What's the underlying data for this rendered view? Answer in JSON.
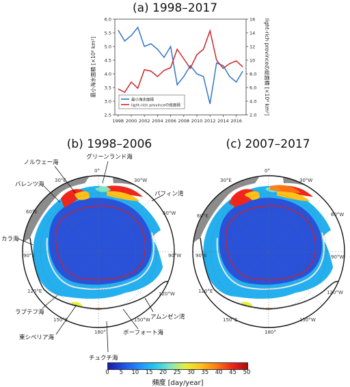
{
  "panel_a": {
    "title": "(a) 1998–2017",
    "ylabel_left": "最小海氷面積 [×10⁶ km²]",
    "ylabel_right": "light-rich provinceの総面積 [×10⁶ km²]",
    "legend_ice": "最小海氷面積",
    "legend_light": "light-rich provinceの総面積"
  },
  "panel_b": {
    "title": "(b) 1998–2006"
  },
  "panel_c": {
    "title": "(c) 2007–2017"
  },
  "map_labels": {
    "norway_sea": "ノルウェー海",
    "greenland_sea": "グリーンランド海",
    "barents_sea": "バレンツ海",
    "baffin_bay": "バフィン湾",
    "kara_sea": "カラ海",
    "laptev_sea": "ラプテフ海",
    "east_siberian_sea": "東シベリア海",
    "chukchi_sea": "チュクチ海",
    "beaufort_sea": "ボーフォート海",
    "amundsen_gulf": "アムンゼン湾"
  },
  "graticule": {
    "lon_0": "0°",
    "lon_30e": "30°E",
    "lon_60e": "60°E",
    "lon_90e": "90°E",
    "lon_120e": "120°E",
    "lon_150e": "150°E",
    "lon_180": "180°",
    "lon_150w": "150°W",
    "lon_120w": "120°W",
    "lon_90w": "90°W",
    "lon_60w": "60°W",
    "lon_30w": "30°W"
  },
  "colorbar": {
    "label": "頻度 [day/year]",
    "ticks": [
      "0",
      "5",
      "10",
      "15",
      "20",
      "25",
      "30",
      "35",
      "40",
      "45",
      "50"
    ],
    "stops": [
      "#1a1aa6",
      "#1f4fe6",
      "#1e90ff",
      "#22c8f0",
      "#7fe6c0",
      "#e6ef3c",
      "#ffc21a",
      "#ff7a12",
      "#f0261a",
      "#b00a0a"
    ]
  },
  "colors": {
    "ice_series": "#2f74c7",
    "light_series": "#c8252a",
    "land": "#8c8c8c",
    "ocean_low": "#2952d9"
  },
  "chart_data": {
    "type": "line",
    "x": [
      1998,
      1999,
      2000,
      2001,
      2002,
      2003,
      2004,
      2005,
      2006,
      2007,
      2008,
      2009,
      2010,
      2011,
      2012,
      2013,
      2014,
      2015,
      2016,
      2017
    ],
    "x_ticks": [
      "1998",
      "2000",
      "2002",
      "2004",
      "2006",
      "2008",
      "2010",
      "2012",
      "2014",
      "2016"
    ],
    "series": [
      {
        "name": "最小海氷面積",
        "axis": "left",
        "values": [
          5.6,
          5.2,
          5.4,
          5.7,
          5.0,
          5.1,
          4.9,
          4.6,
          5.0,
          3.6,
          3.9,
          4.3,
          4.0,
          3.9,
          2.9,
          4.4,
          4.3,
          3.9,
          3.7,
          4.1
        ]
      },
      {
        "name": "light-rich provinceの総面積",
        "axis": "right",
        "values": [
          5.8,
          5.3,
          6.8,
          5.9,
          8.6,
          8.4,
          7.6,
          8.5,
          8.9,
          11.6,
          10.2,
          8.8,
          10.8,
          11.6,
          14.3,
          10.0,
          8.8,
          9.5,
          9.9,
          9.0
        ]
      }
    ],
    "ylim_left": [
      2.5,
      6.0
    ],
    "yticks_left": [
      "2.5",
      "3.0",
      "3.5",
      "4.0",
      "4.5",
      "5.0",
      "5.5",
      "6.0"
    ],
    "ylim_right": [
      2,
      16
    ],
    "yticks_right": [
      "2.0",
      "4.0",
      "6.0",
      "8.0",
      "10",
      "12",
      "14",
      "16"
    ],
    "legend_position": "bottom-left"
  }
}
